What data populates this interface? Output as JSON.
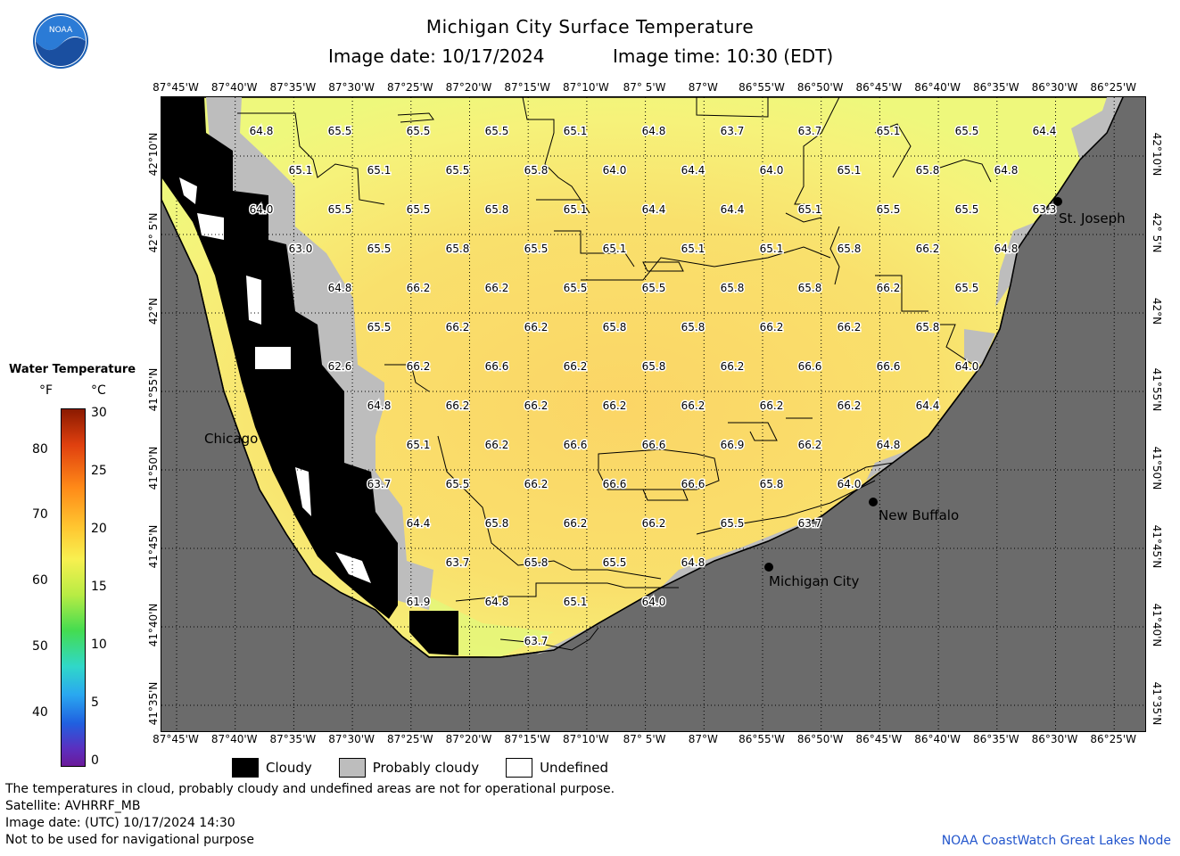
{
  "header": {
    "title": "Michigan City Surface Temperature",
    "image_date": "Image date: 10/17/2024",
    "image_time": "Image time: 10:30 (EDT)"
  },
  "logo": {
    "text": "NOAA"
  },
  "axes": {
    "lon_labels": [
      "87°45'W",
      "87°40'W",
      "87°35'W",
      "87°30'W",
      "87°25'W",
      "87°20'W",
      "87°15'W",
      "87°10'W",
      "87° 5'W",
      "87°W",
      "86°55'W",
      "86°50'W",
      "86°45'W",
      "86°40'W",
      "86°35'W",
      "86°30'W",
      "86°25'W"
    ],
    "lat_labels": [
      "42°10'N",
      "42° 5'N",
      "42°N",
      "41°55'N",
      "41°50'N",
      "41°45'N",
      "41°40'N",
      "41°35'N"
    ]
  },
  "colorbar": {
    "title": "Water Temperature",
    "unit_f": "°F",
    "unit_c": "°C",
    "f_ticks": [
      "80",
      "70",
      "60",
      "50",
      "40"
    ],
    "c_ticks": [
      "30",
      "25",
      "20",
      "15",
      "10",
      "5",
      "0"
    ]
  },
  "places": [
    {
      "name": "St. Joseph"
    },
    {
      "name": "Chicago"
    },
    {
      "name": "New Buffalo"
    },
    {
      "name": "Michigan City"
    }
  ],
  "temperature_labels": [
    [
      "64.8",
      "65.5",
      "65.5",
      "65.5",
      "65.1",
      "64.8",
      "63.7",
      "63.7",
      "65.1",
      "65.5",
      "64.4"
    ],
    [
      "65.1",
      "65.1",
      "65.5",
      "65.8",
      "64.0",
      "64.4",
      "64.0",
      "65.1",
      "65.8",
      "64.8"
    ],
    [
      "64.0",
      "65.5",
      "65.5",
      "65.8",
      "65.1",
      "64.4",
      "64.4",
      "65.1",
      "65.5",
      "65.5",
      "63.3"
    ],
    [
      "63.0",
      "65.5",
      "65.8",
      "65.5",
      "65.1",
      "65.1",
      "65.1",
      "65.8",
      "66.2",
      "64.8"
    ],
    [
      "64.8",
      "66.2",
      "66.2",
      "65.5",
      "65.5",
      "65.8",
      "65.8",
      "66.2",
      "65.5"
    ],
    [
      "65.5",
      "66.2",
      "66.2",
      "65.8",
      "65.8",
      "66.2",
      "66.2",
      "65.8"
    ],
    [
      "62.6",
      "66.2",
      "66.6",
      "66.2",
      "65.8",
      "66.2",
      "66.6",
      "66.6",
      "64.0"
    ],
    [
      "64.8",
      "66.2",
      "66.2",
      "66.2",
      "66.2",
      "66.2",
      "66.2",
      "64.4"
    ],
    [
      "65.1",
      "66.2",
      "66.6",
      "66.6",
      "66.9",
      "66.2",
      "64.8"
    ],
    [
      "63.7",
      "65.5",
      "66.2",
      "66.6",
      "66.6",
      "65.8",
      "64.0"
    ],
    [
      "64.4",
      "65.8",
      "66.2",
      "66.2",
      "65.5",
      "63.7"
    ],
    [
      "63.7",
      "65.8",
      "65.5",
      "64.8"
    ],
    [
      "61.9",
      "64.8",
      "65.1",
      "64.0"
    ],
    [
      "63.7"
    ]
  ],
  "map_legend": {
    "cloudy": "Cloudy",
    "probably_cloudy": "Probably cloudy",
    "undefined": "Undefined"
  },
  "footer": {
    "disclaimer": "The temperatures in cloud, probably cloudy and undefined areas are not for operational purpose.",
    "satellite": "Satellite: AVHRRF_MB",
    "utc_date": "Image date: (UTC) 10/17/2024  14:30",
    "nav_warning": "Not to be used for navigational purpose",
    "credit": "NOAA CoastWatch Great Lakes Node"
  },
  "colors": {
    "land": "#6b6b6b",
    "cloud": "#000000",
    "probably_cloudy": "#bdbdbd",
    "water_warm": "#fbd96a",
    "water_mid": "#f8ef78",
    "water_cool": "#e6f775",
    "credit_blue": "#2255cc"
  }
}
